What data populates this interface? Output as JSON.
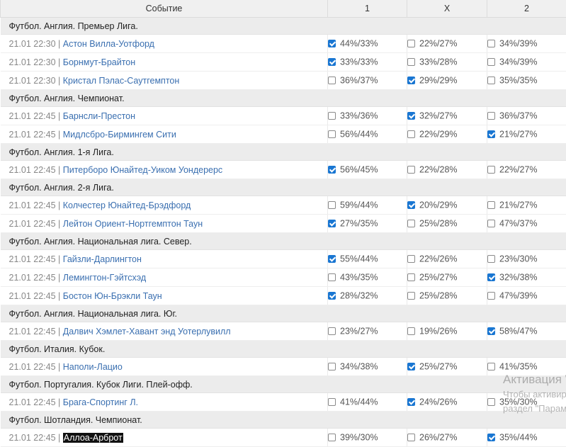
{
  "header": {
    "event": "Событие",
    "col1": "1",
    "colx": "X",
    "col2": "2"
  },
  "groups": [
    {
      "league": "Футбол. Англия. Премьер Лига.",
      "matches": [
        {
          "time": "21.01 22:30",
          "teams": "Астон Вилла-Уотфорд",
          "o1": "44%/33%",
          "ox": "22%/27%",
          "o2": "34%/39%",
          "checked": "1"
        },
        {
          "time": "21.01 22:30",
          "teams": "Борнмут-Брайтон",
          "o1": "33%/33%",
          "ox": "33%/28%",
          "o2": "34%/39%",
          "checked": "1"
        },
        {
          "time": "21.01 22:30",
          "teams": "Кристал Пэлас-Саутгемптон",
          "o1": "36%/37%",
          "ox": "29%/29%",
          "o2": "35%/35%",
          "checked": "x"
        }
      ]
    },
    {
      "league": "Футбол. Англия. Чемпионат.",
      "matches": [
        {
          "time": "21.01 22:45",
          "teams": "Барнсли-Престон",
          "o1": "33%/36%",
          "ox": "32%/27%",
          "o2": "36%/37%",
          "checked": "x"
        },
        {
          "time": "21.01 22:45",
          "teams": "Мидлсбро-Бирмингем Сити",
          "o1": "56%/44%",
          "ox": "22%/29%",
          "o2": "21%/27%",
          "checked": "2"
        }
      ]
    },
    {
      "league": "Футбол. Англия. 1-я Лига.",
      "matches": [
        {
          "time": "21.01 22:45",
          "teams": "Питерборо Юнайтед-Уиком Уондерерс",
          "o1": "56%/45%",
          "ox": "22%/28%",
          "o2": "22%/27%",
          "checked": "1"
        }
      ]
    },
    {
      "league": "Футбол. Англия. 2-я Лига.",
      "matches": [
        {
          "time": "21.01 22:45",
          "teams": "Колчестер Юнайтед-Брэдфорд",
          "o1": "59%/44%",
          "ox": "20%/29%",
          "o2": "21%/27%",
          "checked": "x"
        },
        {
          "time": "21.01 22:45",
          "teams": "Лейтон Ориент-Нортгемптон Таун",
          "o1": "27%/35%",
          "ox": "25%/28%",
          "o2": "47%/37%",
          "checked": "1"
        }
      ]
    },
    {
      "league": "Футбол. Англия. Национальная лига. Север.",
      "matches": [
        {
          "time": "21.01 22:45",
          "teams": "Гайзли-Дарлингтон",
          "o1": "55%/44%",
          "ox": "22%/26%",
          "o2": "23%/30%",
          "checked": "1"
        },
        {
          "time": "21.01 22:45",
          "teams": "Лемингтон-Гэйтсхэд",
          "o1": "43%/35%",
          "ox": "25%/27%",
          "o2": "32%/38%",
          "checked": "2"
        },
        {
          "time": "21.01 22:45",
          "teams": "Бостон Юн-Брэкли Таун",
          "o1": "28%/32%",
          "ox": "25%/28%",
          "o2": "47%/39%",
          "checked": "1"
        }
      ]
    },
    {
      "league": "Футбол. Англия. Национальная лига. Юг.",
      "matches": [
        {
          "time": "21.01 22:45",
          "teams": "Далвич Хэмлет-Хавант энд Уотерлувилл",
          "o1": "23%/27%",
          "ox": "19%/26%",
          "o2": "58%/47%",
          "checked": "2"
        }
      ]
    },
    {
      "league": "Футбол. Италия. Кубок.",
      "matches": [
        {
          "time": "21.01 22:45",
          "teams": "Наполи-Лацио",
          "o1": "34%/38%",
          "ox": "25%/27%",
          "o2": "41%/35%",
          "checked": "x"
        }
      ]
    },
    {
      "league": "Футбол. Португалия. Кубок Лиги. Плей-офф.",
      "matches": [
        {
          "time": "21.01 22:45",
          "teams": "Брага-Спортинг Л.",
          "o1": "41%/44%",
          "ox": "24%/26%",
          "o2": "35%/30%",
          "checked": "x"
        }
      ]
    },
    {
      "league": "Футбол. Шотландия. Чемпионат.",
      "matches": [
        {
          "time": "21.01 22:45",
          "teams": "Аллоа-Арброт",
          "o1": "39%/30%",
          "ox": "26%/27%",
          "o2": "35%/44%",
          "checked": "2",
          "highlighted": true
        }
      ]
    }
  ],
  "watermark": {
    "line1": "Активация Windows",
    "line2": "Чтобы активировать Windows, перейдите в",
    "line3": "раздел \"Параметры\"."
  }
}
